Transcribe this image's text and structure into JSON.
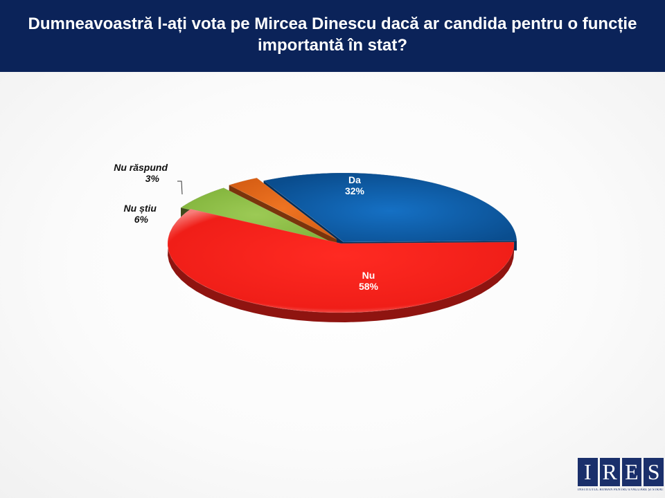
{
  "header": {
    "title": "Dumneavoastră l-ați vota pe Mircea Dinescu dacă ar candida pentru o funcție importantă în stat?"
  },
  "chart_data": {
    "type": "pie",
    "title": "Dumneavoastră l-ați vota pe Mircea Dinescu dacă ar candida pentru o funcție importantă în stat?",
    "slices": [
      {
        "label": "Da",
        "value": 32,
        "value_label": "32%",
        "color": "#0e5ea8"
      },
      {
        "label": "Nu",
        "value": 58,
        "value_label": "58%",
        "color": "#e8231f"
      },
      {
        "label": "Nu știu",
        "value": 6,
        "value_label": "6%",
        "color": "#8cbc45"
      },
      {
        "label": "Nu răspund",
        "value": 3,
        "value_label": "3%",
        "color": "#e5671a"
      }
    ]
  },
  "logo": {
    "letters": [
      "I",
      "R",
      "E",
      "S"
    ],
    "subtitle": "INSTITUTUL ROMÂN PENTRU EVALUARE ȘI STRATEGIE"
  }
}
